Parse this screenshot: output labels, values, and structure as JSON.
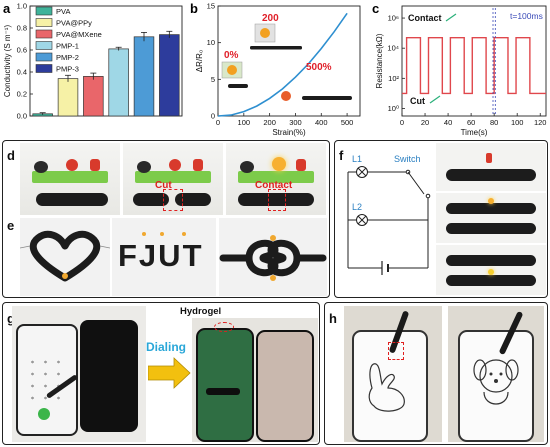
{
  "panels": {
    "a": "a",
    "b": "b",
    "c": "c",
    "d": "d",
    "e": "e",
    "f": "f",
    "g": "g",
    "h": "h"
  },
  "chart_data": [
    {
      "type": "bar",
      "categories": [
        "PVA",
        "PVA@PPy",
        "PVA@MXene",
        "PMP-1",
        "PMP-2",
        "PMP-3"
      ],
      "values": [
        0.02,
        0.34,
        0.36,
        0.61,
        0.72,
        0.74
      ],
      "errors": [
        0.01,
        0.03,
        0.03,
        0.015,
        0.04,
        0.03
      ],
      "colors": [
        "#3fb39a",
        "#f6f1a6",
        "#e9666a",
        "#9fd7e6",
        "#4d9bd6",
        "#2d3c9c"
      ],
      "legend": [
        "PVA",
        "PVA@PPy",
        "PVA@MXene",
        "PMP-1",
        "PMP-2",
        "PMP-3"
      ],
      "ylabel": "Conductivity (S m⁻¹)",
      "ylim": [
        0,
        1.0
      ],
      "yticks": [
        "0.0",
        "0.2",
        "0.4",
        "0.6",
        "0.8",
        "1.0"
      ]
    },
    {
      "type": "line",
      "x": [
        0,
        50,
        100,
        150,
        200,
        250,
        300,
        350,
        400,
        450,
        500
      ],
      "y": [
        0,
        0.12,
        0.6,
        1.35,
        2.4,
        3.7,
        5.3,
        7.1,
        9.2,
        11.5,
        14.0
      ],
      "xlabel": "Strain(%)",
      "ylabel": "ΔR/R₀",
      "xlim": [
        0,
        550
      ],
      "ylim": [
        0,
        15
      ],
      "xticks": [
        "0",
        "100",
        "200",
        "300",
        "400",
        "500"
      ],
      "yticks": [
        "0",
        "5",
        "10",
        "15"
      ],
      "annotations": [
        "0%",
        "200",
        "500%"
      ],
      "color": "#2e8fd0"
    },
    {
      "type": "line",
      "xlabel": "Time(s)",
      "ylabel": "Resistance(kΩ)",
      "xlim": [
        0,
        125
      ],
      "xticks": [
        "0",
        "20",
        "40",
        "60",
        "80",
        "100",
        "120"
      ],
      "yticks": [
        "10⁰",
        "10²",
        "10⁴",
        "10⁶"
      ],
      "ylim_log10": [
        -0.5,
        6.8
      ],
      "high_value_log10": 4.7,
      "low_value_log10": 1.0,
      "contact_intervals": [
        [
          4,
          16
        ],
        [
          23,
          35
        ],
        [
          42,
          54
        ],
        [
          61,
          73
        ],
        [
          80,
          92
        ],
        [
          99,
          111
        ]
      ],
      "annotations": {
        "contact": "Contact",
        "cut": "Cut",
        "period": "t=100ms"
      },
      "marker_x": [
        79,
        81
      ],
      "color": "#e0474c"
    }
  ],
  "labels": {
    "cut": "Cut",
    "contact": "Contact",
    "fjut": "FJUT",
    "l1": "L1",
    "l2": "L2",
    "switch": "Switch",
    "dialing": "Dialing",
    "hydrogel": "Hydrogel"
  },
  "colors": {
    "panel_border": "#222222",
    "gel_black": "#1c1c1c",
    "board_green": "#7ccb4a",
    "red_label": "#e02020",
    "blue_label": "#2a7fc1",
    "arrow_yellow": "#f2c00f",
    "dialing_blue": "#2aa7d8"
  }
}
